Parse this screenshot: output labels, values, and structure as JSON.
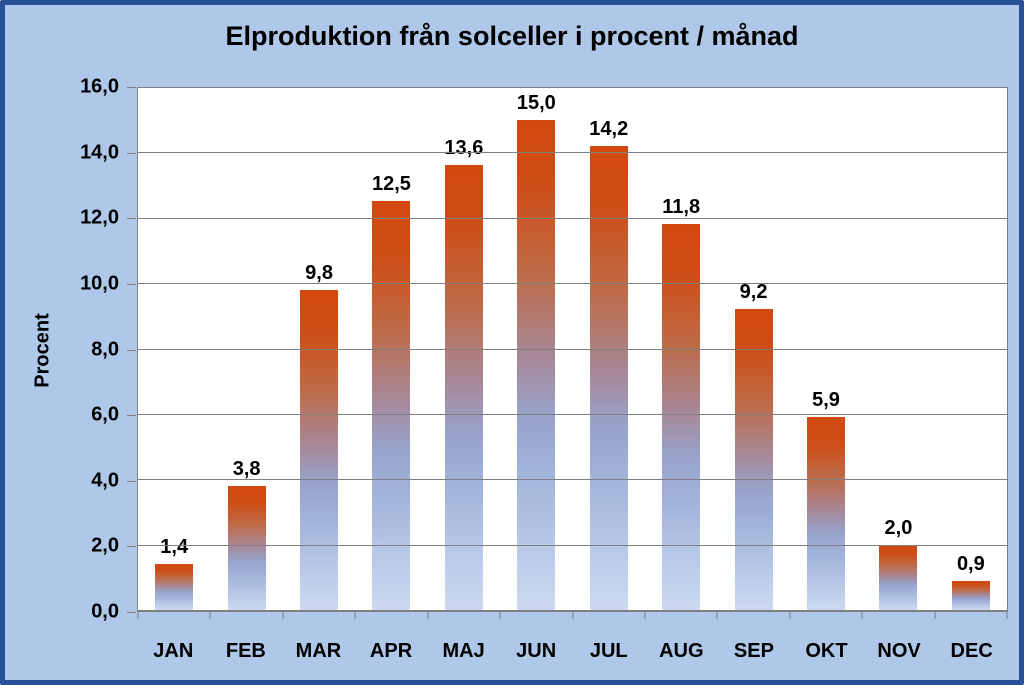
{
  "window": {
    "background_color": "#AFC7E9",
    "frame_border_color": "#2A5098",
    "plot_background_color": "#FFFFFF",
    "gridline_color": "#7F7F7F",
    "text_color": "#000000"
  },
  "chart_data": {
    "type": "bar",
    "title": "Elproduktion från solceller i procent / månad",
    "xlabel": "",
    "ylabel": "Procent",
    "categories": [
      "JAN",
      "FEB",
      "MAR",
      "APR",
      "MAJ",
      "JUN",
      "JUL",
      "AUG",
      "SEP",
      "OKT",
      "NOV",
      "DEC"
    ],
    "values": [
      1.4,
      3.8,
      9.8,
      12.5,
      13.6,
      15.0,
      14.2,
      11.8,
      9.2,
      5.9,
      2.0,
      0.9
    ],
    "value_labels": [
      "1,4",
      "3,8",
      "9,8",
      "12,5",
      "13,6",
      "15,0",
      "14,2",
      "11,8",
      "9,2",
      "5,9",
      "2,0",
      "0,9"
    ],
    "ylim": [
      0,
      16
    ],
    "y_tick_step": 2,
    "y_tick_labels": [
      "0,0",
      "2,0",
      "4,0",
      "6,0",
      "8,0",
      "10,0",
      "12,0",
      "14,0",
      "16,0"
    ],
    "grid": true,
    "legend": "none",
    "decimal_separator": ",",
    "bar_gradient_stops": [
      {
        "color": "#D2490F",
        "pos": 0
      },
      {
        "color": "#CD4E18",
        "pos": 14
      },
      {
        "color": "#BD6C4A",
        "pos": 32
      },
      {
        "color": "#A88795",
        "pos": 48
      },
      {
        "color": "#98A2CA",
        "pos": 60
      },
      {
        "color": "#A2B3DA",
        "pos": 72
      },
      {
        "color": "#B7C7E7",
        "pos": 86
      },
      {
        "color": "#CCD9F0",
        "pos": 100
      }
    ]
  }
}
